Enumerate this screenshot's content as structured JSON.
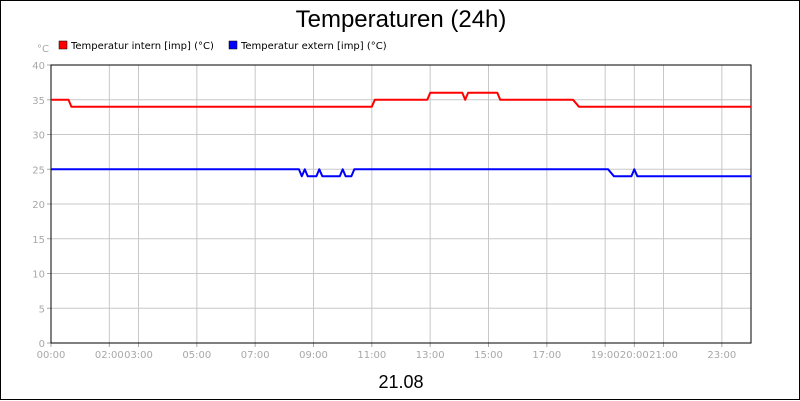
{
  "chart_data": {
    "type": "line",
    "title": "Temperaturen (24h)",
    "ylabel": "°C",
    "xlabel": "21.08",
    "ylim": [
      0,
      40
    ],
    "y_ticks": [
      "0",
      "5",
      "10",
      "15",
      "20",
      "25",
      "30",
      "35",
      "40"
    ],
    "x_range_hours": [
      0,
      24
    ],
    "x_ticks": [
      {
        "h": 0,
        "label": "00:00"
      },
      {
        "h": 2,
        "label": "02:00"
      },
      {
        "h": 3,
        "label": "03:00"
      },
      {
        "h": 5,
        "label": "05:00"
      },
      {
        "h": 7,
        "label": "07:00"
      },
      {
        "h": 9,
        "label": "09:00"
      },
      {
        "h": 11,
        "label": "11:00"
      },
      {
        "h": 13,
        "label": "13:00"
      },
      {
        "h": 15,
        "label": "15:00"
      },
      {
        "h": 17,
        "label": "17:00"
      },
      {
        "h": 19,
        "label": "19:00"
      },
      {
        "h": 20,
        "label": "20:00"
      },
      {
        "h": 21,
        "label": "21:00"
      },
      {
        "h": 23,
        "label": "23:00"
      }
    ],
    "grid": true,
    "legend_position": "top-left",
    "series": [
      {
        "name": "Temperatur intern [imp] (°C)",
        "color": "#ff0000",
        "points": [
          [
            0.0,
            35
          ],
          [
            0.6,
            35
          ],
          [
            0.7,
            34
          ],
          [
            11.0,
            34
          ],
          [
            11.1,
            35
          ],
          [
            12.9,
            35
          ],
          [
            13.0,
            36
          ],
          [
            14.1,
            36
          ],
          [
            14.2,
            35
          ],
          [
            14.3,
            36
          ],
          [
            15.3,
            36
          ],
          [
            15.4,
            35
          ],
          [
            17.9,
            35
          ],
          [
            18.1,
            34
          ],
          [
            24.0,
            34
          ]
        ]
      },
      {
        "name": "Temperatur extern [imp] (°C)",
        "color": "#0000ff",
        "points": [
          [
            0.0,
            25
          ],
          [
            8.5,
            25
          ],
          [
            8.6,
            24
          ],
          [
            8.7,
            25
          ],
          [
            8.8,
            24
          ],
          [
            9.1,
            24
          ],
          [
            9.2,
            25
          ],
          [
            9.3,
            24
          ],
          [
            9.9,
            24
          ],
          [
            10.0,
            25
          ],
          [
            10.1,
            24
          ],
          [
            10.3,
            24
          ],
          [
            10.4,
            25
          ],
          [
            19.1,
            25
          ],
          [
            19.3,
            24
          ],
          [
            19.9,
            24
          ],
          [
            20.0,
            25
          ],
          [
            20.1,
            24
          ],
          [
            24.0,
            24
          ]
        ]
      }
    ]
  }
}
